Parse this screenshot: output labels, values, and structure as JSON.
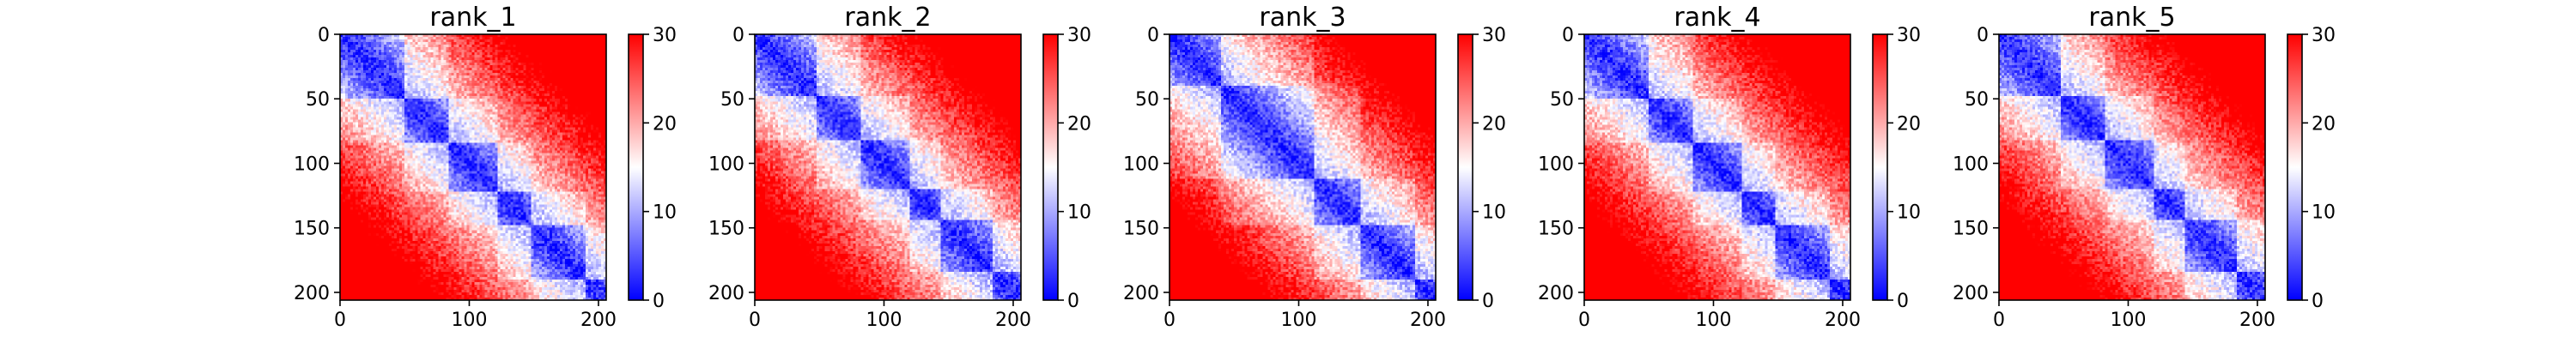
{
  "chart_data": [
    {
      "type": "heatmap",
      "title": "rank_1",
      "matrix_size": 206,
      "xlim": [
        0,
        206
      ],
      "ylim": [
        206,
        0
      ],
      "xticks": [
        0,
        100,
        200
      ],
      "yticks": [
        0,
        50,
        100,
        150,
        200
      ],
      "domains": [
        [
          0,
          50
        ],
        [
          50,
          84
        ],
        [
          84,
          122
        ],
        [
          122,
          148
        ],
        [
          148,
          190
        ],
        [
          190,
          206
        ]
      ],
      "colorbar": {
        "min": 0,
        "max": 30,
        "ticks": [
          0,
          10,
          20,
          30
        ],
        "colormap": "bwr",
        "colors": [
          "#0000ff",
          "#ffffff",
          "#ff0000"
        ]
      }
    },
    {
      "type": "heatmap",
      "title": "rank_2",
      "matrix_size": 206,
      "xlim": [
        0,
        206
      ],
      "ylim": [
        206,
        0
      ],
      "xticks": [
        0,
        100,
        200
      ],
      "yticks": [
        0,
        50,
        100,
        150,
        200
      ],
      "domains": [
        [
          0,
          48
        ],
        [
          48,
          82
        ],
        [
          82,
          120
        ],
        [
          120,
          145
        ],
        [
          145,
          185
        ],
        [
          185,
          206
        ]
      ],
      "colorbar": {
        "min": 0,
        "max": 30,
        "ticks": [
          0,
          10,
          20,
          30
        ],
        "colormap": "bwr",
        "colors": [
          "#0000ff",
          "#ffffff",
          "#ff0000"
        ]
      }
    },
    {
      "type": "heatmap",
      "title": "rank_3",
      "matrix_size": 206,
      "xlim": [
        0,
        206
      ],
      "ylim": [
        206,
        0
      ],
      "xticks": [
        0,
        100,
        200
      ],
      "yticks": [
        0,
        50,
        100,
        150,
        200
      ],
      "domains": [
        [
          0,
          40
        ],
        [
          40,
          112
        ],
        [
          112,
          148
        ],
        [
          148,
          190
        ],
        [
          190,
          206
        ]
      ],
      "colorbar": {
        "min": 0,
        "max": 30,
        "ticks": [
          0,
          10,
          20,
          30
        ],
        "colormap": "bwr",
        "colors": [
          "#0000ff",
          "#ffffff",
          "#ff0000"
        ]
      }
    },
    {
      "type": "heatmap",
      "title": "rank_4",
      "matrix_size": 206,
      "xlim": [
        0,
        206
      ],
      "ylim": [
        206,
        0
      ],
      "xticks": [
        0,
        100,
        200
      ],
      "yticks": [
        0,
        50,
        100,
        150,
        200
      ],
      "domains": [
        [
          0,
          50
        ],
        [
          50,
          84
        ],
        [
          84,
          122
        ],
        [
          122,
          148
        ],
        [
          148,
          190
        ],
        [
          190,
          206
        ]
      ],
      "colorbar": {
        "min": 0,
        "max": 30,
        "ticks": [
          0,
          10,
          20,
          30
        ],
        "colormap": "bwr",
        "colors": [
          "#0000ff",
          "#ffffff",
          "#ff0000"
        ]
      }
    },
    {
      "type": "heatmap",
      "title": "rank_5",
      "matrix_size": 206,
      "xlim": [
        0,
        206
      ],
      "ylim": [
        206,
        0
      ],
      "xticks": [
        0,
        100,
        200
      ],
      "yticks": [
        0,
        50,
        100,
        150,
        200
      ],
      "domains": [
        [
          0,
          48
        ],
        [
          48,
          82
        ],
        [
          82,
          120
        ],
        [
          120,
          145
        ],
        [
          145,
          185
        ],
        [
          185,
          206
        ]
      ],
      "colorbar": {
        "min": 0,
        "max": 30,
        "ticks": [
          0,
          10,
          20,
          30
        ],
        "colormap": "bwr",
        "colors": [
          "#0000ff",
          "#ffffff",
          "#ff0000"
        ]
      }
    }
  ]
}
